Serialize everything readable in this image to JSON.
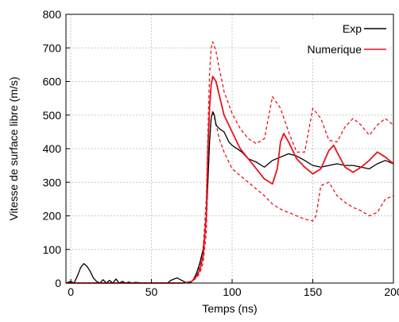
{
  "chart_data": {
    "type": "line",
    "title": "",
    "xlabel": "Temps (ns)",
    "ylabel": "Vitesse de surface libre (m/s)",
    "xlim": [
      -3,
      200
    ],
    "ylim": [
      0,
      800
    ],
    "xticks": [
      0,
      50,
      100,
      150,
      200
    ],
    "yticks": [
      0,
      100,
      200,
      300,
      400,
      500,
      600,
      700,
      800
    ],
    "grid": true,
    "legend": "top-right",
    "colors": {
      "exp": "#000000",
      "num": "#e8141e",
      "grid": "#c8c8c8"
    },
    "series": [
      {
        "name": "Exp",
        "style": "solid",
        "x": [
          -3,
          0,
          2,
          4,
          6,
          8,
          10,
          12,
          14,
          16,
          18,
          20,
          22,
          24,
          26,
          28,
          30,
          32,
          34,
          36,
          38,
          40,
          45,
          50,
          55,
          60,
          62,
          64,
          66,
          68,
          70,
          72,
          74,
          76,
          78,
          80,
          82,
          83,
          84,
          85,
          86,
          87,
          88,
          89,
          90,
          92,
          95,
          98,
          100,
          103,
          106,
          110,
          115,
          120,
          125,
          130,
          135,
          140,
          145,
          150,
          155,
          160,
          165,
          170,
          175,
          180,
          185,
          190,
          195,
          200
        ],
        "y": [
          0,
          5,
          0,
          20,
          45,
          58,
          50,
          35,
          15,
          5,
          0,
          10,
          0,
          8,
          0,
          12,
          0,
          5,
          0,
          3,
          0,
          2,
          0,
          0,
          0,
          0,
          8,
          12,
          15,
          10,
          5,
          0,
          0,
          10,
          30,
          60,
          100,
          140,
          200,
          300,
          420,
          490,
          510,
          500,
          470,
          460,
          450,
          420,
          410,
          400,
          390,
          370,
          360,
          345,
          365,
          375,
          385,
          378,
          365,
          350,
          345,
          350,
          355,
          350,
          350,
          345,
          340,
          355,
          365,
          355
        ]
      },
      {
        "name": "Numerique",
        "style": "solid",
        "x": [
          -3,
          0,
          20,
          40,
          60,
          70,
          75,
          78,
          80,
          82,
          84,
          85,
          86,
          87,
          88,
          90,
          92,
          95,
          100,
          105,
          110,
          115,
          120,
          125,
          128,
          130,
          132,
          135,
          140,
          145,
          150,
          155,
          160,
          163,
          165,
          170,
          175,
          180,
          185,
          190,
          195,
          200
        ],
        "y": [
          0,
          0,
          0,
          0,
          0,
          0,
          5,
          20,
          40,
          80,
          200,
          400,
          520,
          590,
          615,
          600,
          560,
          500,
          450,
          400,
          370,
          340,
          310,
          295,
          340,
          420,
          445,
          420,
          370,
          345,
          325,
          340,
          395,
          410,
          390,
          345,
          330,
          345,
          365,
          390,
          375,
          355
        ]
      },
      {
        "name": "",
        "style": "dashed",
        "x": [
          -3,
          0,
          20,
          40,
          60,
          70,
          75,
          78,
          80,
          82,
          84,
          85,
          86,
          87,
          88,
          90,
          92,
          95,
          100,
          105,
          110,
          115,
          120,
          125,
          130,
          135,
          140,
          145,
          150,
          155,
          160,
          165,
          170,
          175,
          180,
          185,
          190,
          195,
          200
        ],
        "y": [
          0,
          0,
          0,
          0,
          0,
          0,
          5,
          25,
          50,
          100,
          250,
          450,
          620,
          700,
          718,
          690,
          640,
          570,
          505,
          460,
          430,
          415,
          430,
          555,
          520,
          450,
          390,
          390,
          520,
          490,
          425,
          420,
          465,
          490,
          470,
          440,
          470,
          490,
          470
        ]
      },
      {
        "name": "",
        "style": "dashed",
        "x": [
          -3,
          0,
          20,
          40,
          60,
          70,
          75,
          78,
          80,
          82,
          84,
          85,
          86,
          87,
          88,
          90,
          92,
          95,
          100,
          105,
          110,
          115,
          120,
          125,
          130,
          135,
          140,
          145,
          150,
          152,
          155,
          160,
          165,
          170,
          175,
          180,
          185,
          190,
          195,
          200
        ],
        "y": [
          0,
          0,
          0,
          0,
          0,
          0,
          5,
          15,
          30,
          60,
          150,
          320,
          420,
          490,
          510,
          475,
          430,
          390,
          340,
          320,
          300,
          280,
          260,
          235,
          220,
          210,
          200,
          190,
          185,
          200,
          290,
          300,
          260,
          240,
          225,
          215,
          200,
          210,
          250,
          260
        ]
      }
    ]
  }
}
